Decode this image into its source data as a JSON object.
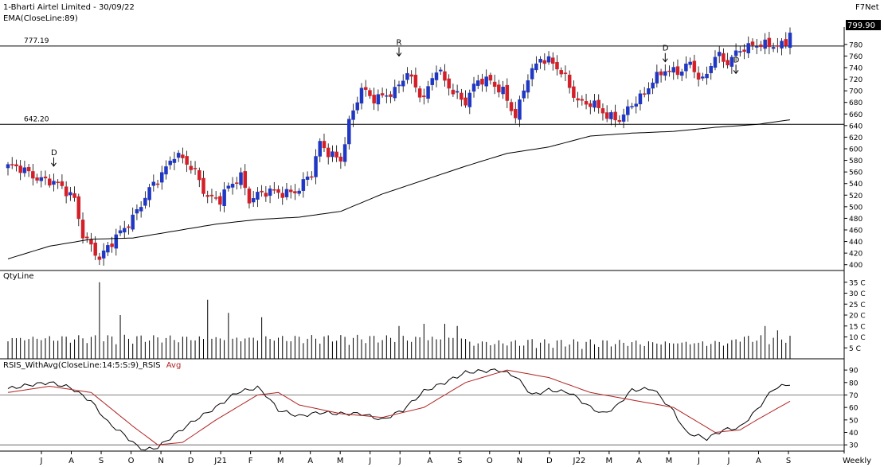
{
  "header": {
    "title": "1-Bharti Airtel Limited - 30/09/22",
    "ema_label": "EMA(CloseLine:89)",
    "brand": "F7Net"
  },
  "price_panel": {
    "levels": [
      {
        "label": "777.19",
        "value": 777.19
      },
      {
        "label": "642.20",
        "value": 642.2
      }
    ],
    "last_price": "799.90",
    "last_price_value": 799.9,
    "annotations": [
      {
        "text": "D",
        "index": 11,
        "value": 570
      },
      {
        "text": "R",
        "index": 94,
        "value": 760
      },
      {
        "text": "D",
        "index": 158,
        "value": 750
      },
      {
        "text": "D",
        "index": 175,
        "value": 730
      }
    ]
  },
  "volume_panel": {
    "label": "QtyLine"
  },
  "rsi_panel": {
    "label_main": "RSIS_WithAvg(CloseLine:14:5:S:9)_RSIS",
    "label_avg": "Avg",
    "levels": [
      70,
      30
    ]
  },
  "x_axis": {
    "labels": [
      "J",
      "A",
      "S",
      "O",
      "N",
      "D",
      "J21",
      "F",
      "M",
      "A",
      "M",
      "J",
      "J",
      "A",
      "S",
      "O",
      "N",
      "D",
      "J22",
      "M",
      "A",
      "M",
      "J",
      "J",
      "A",
      "S"
    ],
    "timeframe": "Weekly"
  },
  "colors": {
    "up": "#1f37c4",
    "down": "#d41f28",
    "ema": "#000000",
    "rsi": "#000000",
    "rsi_avg": "#b22222",
    "hline": "#000000"
  },
  "chart_data": [
    {
      "type": "candlestick",
      "title": "1-Bharti Airtel Limited - 30/09/22",
      "y_ticks": [
        400,
        420,
        440,
        460,
        480,
        500,
        520,
        540,
        560,
        580,
        600,
        620,
        640,
        660,
        680,
        700,
        720,
        740,
        760,
        780
      ],
      "ylim": [
        390,
        810
      ],
      "ema_series": {
        "name": "EMA(CloseLine:89)",
        "x": [
          0,
          10,
          20,
          30,
          40,
          50,
          60,
          70,
          80,
          90,
          100,
          110,
          120,
          130,
          140,
          150,
          160,
          170,
          180,
          188
        ],
        "values": [
          410,
          432,
          444,
          446,
          458,
          470,
          478,
          482,
          492,
          522,
          546,
          570,
          592,
          603,
          622,
          627,
          630,
          637,
          642,
          650
        ]
      },
      "candles": {
        "count": 189,
        "close_anchors": {
          "x": [
            0,
            5,
            10,
            13,
            16,
            18,
            21,
            22,
            25,
            27,
            30,
            32,
            35,
            40,
            45,
            48,
            51,
            53,
            56,
            58,
            60,
            65,
            70,
            73,
            75,
            80,
            82,
            85,
            88,
            91,
            93,
            96,
            100,
            103,
            106,
            110,
            113,
            116,
            119,
            122,
            125,
            128,
            131,
            134,
            137,
            140,
            144,
            147,
            150,
            153,
            155,
            158,
            161,
            164,
            167,
            170,
            173,
            176,
            179,
            182,
            185,
            188
          ],
          "values": [
            570,
            558,
            545,
            530,
            515,
            455,
            420,
            405,
            440,
            460,
            480,
            500,
            540,
            590,
            560,
            520,
            510,
            530,
            555,
            515,
            520,
            525,
            530,
            555,
            610,
            580,
            640,
            705,
            690,
            690,
            695,
            735,
            685,
            735,
            710,
            680,
            715,
            720,
            700,
            650,
            725,
            760,
            745,
            720,
            685,
            678,
            655,
            655,
            675,
            690,
            720,
            740,
            728,
            745,
            720,
            760,
            745,
            775,
            780,
            775,
            778,
            790
          ]
        }
      },
      "volume": {
        "y_ticks": [
          "5 C",
          "10 C",
          "15 C",
          "20 C",
          "25 C",
          "30 C",
          "35 C"
        ],
        "ylim": [
          0,
          36
        ],
        "spikes": [
          {
            "index": 22,
            "value": 35
          },
          {
            "index": 48,
            "value": 27
          },
          {
            "index": 53,
            "value": 21
          },
          {
            "index": 61,
            "value": 19
          },
          {
            "index": 27,
            "value": 20
          },
          {
            "index": 100,
            "value": 16
          },
          {
            "index": 105,
            "value": 16
          },
          {
            "index": 108,
            "value": 15
          },
          {
            "index": 94,
            "value": 15
          },
          {
            "index": 182,
            "value": 15
          },
          {
            "index": 185,
            "value": 13
          },
          {
            "index": 126,
            "value": 9
          }
        ],
        "base": 6
      },
      "rsi": {
        "y_ticks": [
          30,
          40,
          50,
          60,
          70,
          80,
          90
        ],
        "ylim": [
          25,
          92
        ],
        "series": [
          {
            "name": "RSIS",
            "x": [
              0,
              5,
              10,
              15,
              20,
              24,
              28,
              31,
              33,
              36,
              40,
              45,
              50,
              55,
              60,
              62,
              65,
              70,
              75,
              80,
              85,
              90,
              95,
              100,
              105,
              110,
              113,
              118,
              122,
              126,
              130,
              135,
              140,
              143,
              146,
              150,
              155,
              160,
              163,
              168,
              172,
              176,
              180,
              184,
              188
            ],
            "values": [
              75,
              78,
              80,
              76,
              65,
              48,
              38,
              29,
              26,
              28,
              38,
              50,
              60,
              72,
              76,
              70,
              58,
              53,
              56,
              55,
              55,
              50,
              58,
              73,
              80,
              88,
              89,
              90,
              85,
              70,
              74,
              72,
              60,
              55,
              60,
              74,
              75,
              57,
              40,
              35,
              42,
              44,
              58,
              75,
              79
            ]
          },
          {
            "name": "Avg",
            "x": [
              0,
              10,
              20,
              30,
              36,
              42,
              50,
              60,
              65,
              70,
              80,
              90,
              100,
              110,
              120,
              130,
              140,
              150,
              160,
              170,
              176,
              180,
              188
            ],
            "values": [
              72,
              77,
              72,
              45,
              30,
              32,
              50,
              70,
              72,
              62,
              55,
              52,
              60,
              80,
              90,
              84,
              72,
              66,
              60,
              40,
              42,
              50,
              65
            ]
          }
        ]
      }
    }
  ]
}
